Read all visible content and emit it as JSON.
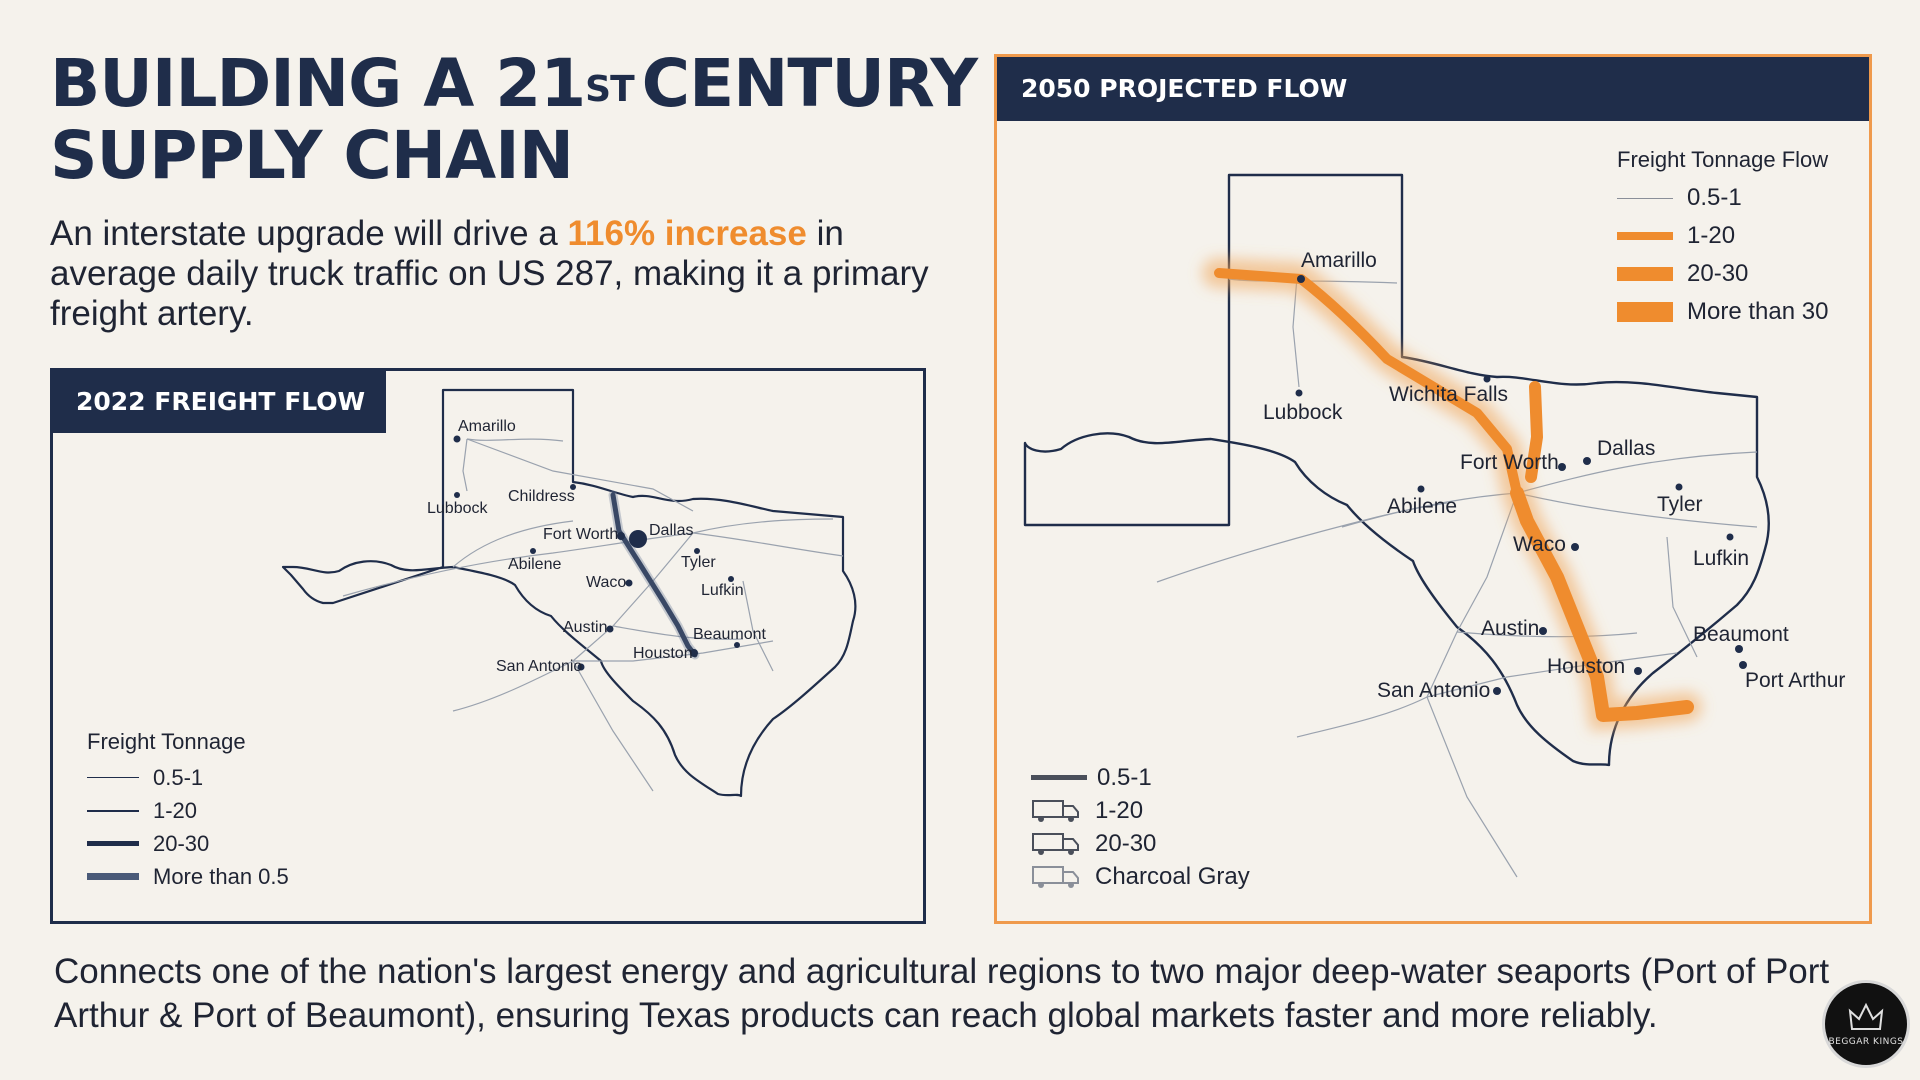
{
  "header": {
    "title_line1_a": "BUILDING A 21",
    "title_line1_sup": "ST",
    "title_line1_b": "CENTURY",
    "title_line2": "SUPPLY CHAIN"
  },
  "lead": {
    "text_before": "An interstate upgrade will drive a ",
    "highlight": "116% increase",
    "text_after": " in average daily truck traffic on US 287, making it a primary freight artery."
  },
  "panel_2022": {
    "title": "2022 FREIGHT FLOW",
    "cities": [
      "Amarillo",
      "Lubbock",
      "Childress",
      "Fort Worth",
      "Dallas",
      "Abilene",
      "Tyler",
      "Waco",
      "Lufkin",
      "Austin",
      "Beaumont",
      "Houston",
      "San Antonio"
    ],
    "legend": {
      "title": "Freight Tonnage",
      "items": [
        "0.5-1",
        "1-20",
        "20-30",
        "More than 0.5"
      ]
    }
  },
  "panel_2050": {
    "title": "2050 PROJECTED FLOW",
    "cities": [
      "Amarillo",
      "Lubbock",
      "Wichita Falls",
      "Fort Worth",
      "Dallas",
      "Abilene",
      "Tyler",
      "Waco",
      "Lufkin",
      "Austin",
      "Beaumont",
      "Houston",
      "Port Arthur",
      "San Antonio"
    ],
    "legend_top": {
      "title": "Freight Tonnage Flow",
      "items": [
        "0.5-1",
        "1-20",
        "20-30",
        "More than 30"
      ]
    },
    "legend_bottom": {
      "items": [
        "0.5-1",
        "1-20",
        "20-30",
        "Charcoal Gray"
      ]
    }
  },
  "footer": {
    "text": "Connects one of the nation's largest energy and agricultural regions to two major deep-water seaports (Port of Port Arthur & Port of Beaumont), ensuring Texas products can reach global markets faster and more reliably."
  },
  "logo": {
    "text": "BEGGAR KINGS"
  },
  "colors": {
    "navy": "#1f2d4a",
    "orange": "#ef8c2e",
    "background": "#f5f2ec"
  }
}
